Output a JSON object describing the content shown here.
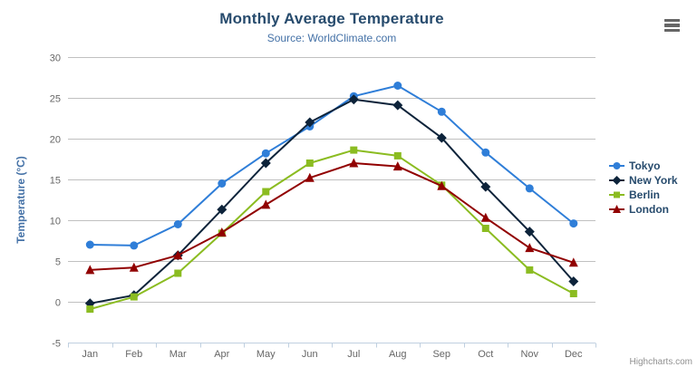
{
  "credits": "Highcharts.com",
  "context_menu": {
    "icon": "hamburger-icon"
  },
  "theme": {
    "title_color": "#274b6d",
    "subtitle_color": "#4572a7",
    "axis_title_color": "#4572a7",
    "tick_label_color": "#666666",
    "grid_line_color": "#c0c0c0",
    "x_axis_line_color": "#c0d0e0",
    "legend_text_color": "#274b6d",
    "credits_color": "#909090",
    "background": "#ffffff"
  },
  "chart_data": {
    "type": "line",
    "title": "Monthly Average Temperature",
    "subtitle": "Source: WorldClimate.com",
    "xlabel": "",
    "ylabel": "Temperature (°C)",
    "ylim": [
      -5,
      30
    ],
    "yticks": [
      -5,
      0,
      5,
      10,
      15,
      20,
      25,
      30
    ],
    "grid": true,
    "legend_position": "right",
    "categories": [
      "Jan",
      "Feb",
      "Mar",
      "Apr",
      "May",
      "Jun",
      "Jul",
      "Aug",
      "Sep",
      "Oct",
      "Nov",
      "Dec"
    ],
    "series": [
      {
        "name": "Tokyo",
        "color": "#2f7ed8",
        "marker": "circle",
        "values": [
          7.0,
          6.9,
          9.5,
          14.5,
          18.2,
          21.5,
          25.2,
          26.5,
          23.3,
          18.3,
          13.9,
          9.6
        ]
      },
      {
        "name": "New York",
        "color": "#0d233a",
        "marker": "diamond",
        "values": [
          -0.2,
          0.8,
          5.7,
          11.3,
          17.0,
          22.0,
          24.8,
          24.1,
          20.1,
          14.1,
          8.6,
          2.5
        ]
      },
      {
        "name": "Berlin",
        "color": "#8bbc21",
        "marker": "square",
        "values": [
          -0.9,
          0.6,
          3.5,
          8.4,
          13.5,
          17.0,
          18.6,
          17.9,
          14.3,
          9.0,
          3.9,
          1.0
        ]
      },
      {
        "name": "London",
        "color": "#910000",
        "marker": "triangle",
        "values": [
          3.9,
          4.2,
          5.7,
          8.5,
          11.9,
          15.2,
          17.0,
          16.6,
          14.2,
          10.3,
          6.6,
          4.8
        ]
      }
    ]
  }
}
